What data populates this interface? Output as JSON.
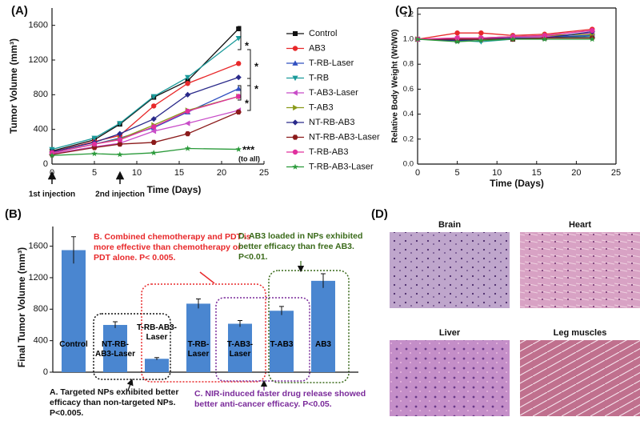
{
  "chart_data": [
    {
      "type": "line",
      "panel_label": "(A)",
      "x_label": "Time (Days)",
      "y_label": "Tumor Volume (mm³)",
      "x": [
        0,
        5,
        8,
        12,
        16,
        22
      ],
      "xlim": [
        0,
        25
      ],
      "xticks": [
        0,
        5,
        10,
        15,
        20,
        25
      ],
      "ylim": [
        0,
        1800
      ],
      "yticks": [
        0,
        400,
        800,
        1200,
        1600
      ],
      "legend": "right",
      "series": [
        {
          "name": "Control",
          "color": "#111111",
          "marker": "square",
          "values": [
            150,
            280,
            460,
            770,
            960,
            1560
          ]
        },
        {
          "name": "AB3",
          "color": "#e8282a",
          "marker": "circle",
          "values": [
            140,
            260,
            330,
            670,
            930,
            1160
          ]
        },
        {
          "name": "T-RB-Laser",
          "color": "#3050c0",
          "marker": "triangle-up",
          "values": [
            130,
            230,
            300,
            420,
            600,
            870
          ]
        },
        {
          "name": "T-RB",
          "color": "#1a9a9a",
          "marker": "triangle-down",
          "values": [
            170,
            300,
            470,
            780,
            1000,
            1450
          ]
        },
        {
          "name": "T-AB3-Laser",
          "color": "#c84cc8",
          "marker": "triangle-left",
          "values": [
            120,
            200,
            240,
            380,
            470,
            620
          ]
        },
        {
          "name": "T-AB3",
          "color": "#8a9a1a",
          "marker": "triangle-right",
          "values": [
            130,
            230,
            290,
            450,
            620,
            780
          ]
        },
        {
          "name": "NT-RB-AB3",
          "color": "#2a2a8a",
          "marker": "diamond",
          "values": [
            140,
            250,
            350,
            520,
            800,
            1000
          ]
        },
        {
          "name": "NT-RB-AB3-Laser",
          "color": "#8b1a1a",
          "marker": "hexagon",
          "values": [
            110,
            190,
            230,
            250,
            350,
            600
          ]
        },
        {
          "name": "T-RB-AB3",
          "color": "#e0309e",
          "marker": "circle",
          "values": [
            130,
            230,
            280,
            430,
            610,
            780
          ]
        },
        {
          "name": "T-RB-AB3-Laser",
          "color": "#2a9a3a",
          "marker": "star",
          "values": [
            100,
            120,
            110,
            130,
            180,
            170
          ]
        }
      ],
      "annotations": [
        "*",
        "*",
        "*",
        "*",
        "***",
        "(to all)",
        "1st injection",
        "2nd injection"
      ]
    },
    {
      "type": "line",
      "panel_label": "(C)",
      "x_label": "Time (Days)",
      "y_label": "Relative Body Weight (Wt/W0)",
      "x": [
        0,
        5,
        8,
        12,
        16,
        22
      ],
      "xlim": [
        0,
        25
      ],
      "xticks": [
        0,
        5,
        10,
        15,
        20,
        25
      ],
      "ylim": [
        0,
        1.25
      ],
      "yticks": [
        {
          "value": 0,
          "label": "0.0"
        },
        0.2,
        0.4,
        0.6,
        0.8,
        {
          "value": 1,
          "label": "1.0"
        },
        1.2
      ],
      "series": [
        {
          "color": "#111111",
          "marker": "square",
          "values": [
            1.0,
            0.99,
            1.0,
            1.0,
            1.01,
            1.03
          ]
        },
        {
          "color": "#e8282a",
          "marker": "circle",
          "values": [
            1.0,
            1.05,
            1.05,
            1.03,
            1.04,
            1.08
          ]
        },
        {
          "color": "#3050c0",
          "marker": "triangle-up",
          "values": [
            1.0,
            1.0,
            1.01,
            1.02,
            1.02,
            1.03
          ]
        },
        {
          "color": "#1a9a9a",
          "marker": "triangle-down",
          "values": [
            1.0,
            0.99,
            0.98,
            1.0,
            1.01,
            1.02
          ]
        },
        {
          "color": "#c84cc8",
          "marker": "triangle-left",
          "values": [
            1.0,
            1.01,
            1.0,
            1.02,
            1.02,
            1.05
          ]
        },
        {
          "color": "#8a9a1a",
          "marker": "triangle-right",
          "values": [
            1.0,
            1.0,
            1.01,
            1.02,
            1.03,
            1.04
          ]
        },
        {
          "color": "#2a2a8a",
          "marker": "diamond",
          "values": [
            1.0,
            0.99,
            1.0,
            1.01,
            1.01,
            1.06
          ]
        },
        {
          "color": "#8b1a1a",
          "marker": "hexagon",
          "values": [
            1.0,
            1.0,
            1.0,
            1.0,
            1.01,
            1.01
          ]
        },
        {
          "color": "#e0309e",
          "marker": "circle",
          "values": [
            1.0,
            1.01,
            1.01,
            1.02,
            1.03,
            1.07
          ]
        },
        {
          "color": "#2a9a3a",
          "marker": "star",
          "values": [
            1.0,
            0.98,
            0.99,
            1.0,
            1.0,
            1.0
          ]
        }
      ]
    },
    {
      "type": "bar",
      "panel_label": "(B)",
      "y_label": "Final Tumor Volume (mm³)",
      "color": "#4a86d0",
      "categories": [
        "Control",
        "NT-RB-AB3-Laser",
        "T-RB-AB3-Laser",
        "T-RB-Laser",
        "T-AB3-Laser",
        "T-AB3",
        "AB3"
      ],
      "values": [
        1550,
        600,
        170,
        870,
        615,
        780,
        1160
      ],
      "errors": [
        170,
        40,
        15,
        60,
        40,
        55,
        90
      ],
      "ylim": [
        0,
        1850
      ],
      "yticks": [
        0,
        400,
        800,
        1200,
        1600
      ],
      "annotations": [
        {
          "text": "A. Targeted NPs exhibited better efficacy than non-targeted NPs. P<0.005.",
          "color": "#111111"
        },
        {
          "text": "B. Combined chemotherapy and PDT is more effective than chemotherapy or PDT alone. P< 0.005.",
          "color": "#e8282a"
        },
        {
          "text": "C. NIR-induced faster drug release showed better anti-cancer efficacy. P<0.05.",
          "color": "#7a2a9a"
        },
        {
          "text": "D. AB3 loaded in NPs exhibited better efficacy than free AB3. P<0.01.",
          "color": "#3a6a1a"
        }
      ]
    }
  ],
  "panel_d": {
    "panel_label": "(D)",
    "images": [
      "Brain",
      "Heart",
      "Liver",
      "Leg muscles"
    ]
  }
}
